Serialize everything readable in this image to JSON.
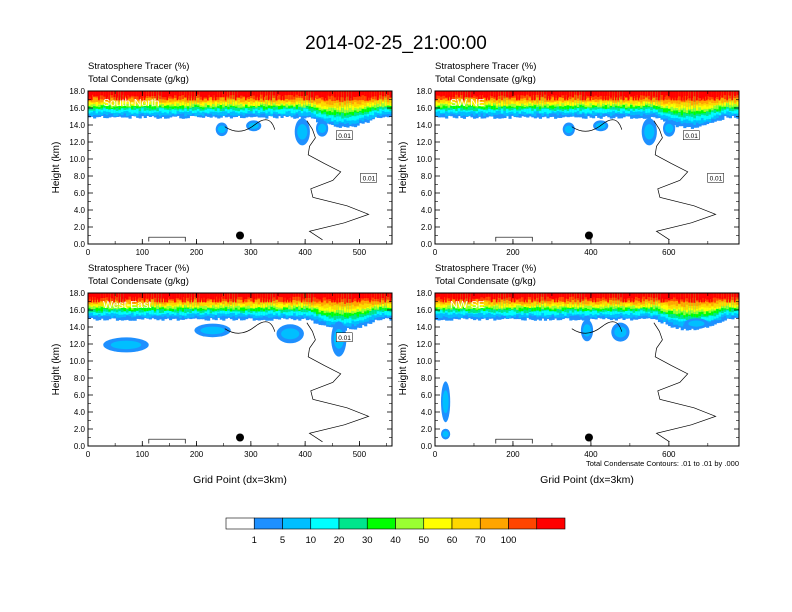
{
  "title": "2014-02-25_21:00:00",
  "colorbar": {
    "labels": [
      "1",
      "5",
      "10",
      "20",
      "30",
      "40",
      "50",
      "60",
      "70",
      "100"
    ],
    "colors": [
      "#ffffff",
      "#1e90ff",
      "#00bfff",
      "#00ffff",
      "#00e58c",
      "#00ff00",
      "#9aff32",
      "#ffff00",
      "#ffd700",
      "#ffa500",
      "#ff4500",
      "#ff0000"
    ]
  },
  "chart_data": [
    {
      "type": "heatmap",
      "label": "South-North",
      "title_left_1": "Stratosphere Tracer   (%)",
      "title_left_2": "Total Condensate   (g/kg)",
      "ylabel": "Height (km)",
      "xlabel": "",
      "xlim": [
        0,
        560
      ],
      "ylim": [
        0,
        18
      ],
      "xticks": [
        "0",
        "100",
        "200",
        "300",
        "400",
        "500"
      ],
      "xtick_values": [
        0,
        100,
        200,
        300,
        400,
        500
      ],
      "yticks": [
        "0.0",
        "2.0",
        "4.0",
        "6.0",
        "8.0",
        "10.0",
        "12.0",
        "14.0",
        "16.0",
        "18.0"
      ],
      "contour_labels": [
        "0.01",
        "0.01"
      ],
      "marker_x": 280,
      "marker_y": 1.0
    },
    {
      "type": "heatmap",
      "label": "SW-NE",
      "title_left_1": "Stratosphere Tracer   (%)",
      "title_left_2": "Total Condensate   (g/kg)",
      "ylabel": "Height (km)",
      "xlabel": "",
      "xlim": [
        0,
        780
      ],
      "ylim": [
        0,
        18
      ],
      "xticks": [
        "0",
        "200",
        "400",
        "600"
      ],
      "xtick_values": [
        0,
        200,
        400,
        600
      ],
      "yticks": [
        "0.0",
        "2.0",
        "4.0",
        "6.0",
        "8.0",
        "10.0",
        "12.0",
        "14.0",
        "16.0",
        "18.0"
      ],
      "contour_labels": [
        "0.01",
        "0.01"
      ],
      "marker_x": 395,
      "marker_y": 1.0
    },
    {
      "type": "heatmap",
      "label": "West-East",
      "title_left_1": "Stratosphere Tracer   (%)",
      "title_left_2": "Total Condensate   (g/kg)",
      "ylabel": "Height (km)",
      "xlabel": "Grid Point (dx=3km)",
      "xlim": [
        0,
        560
      ],
      "ylim": [
        0,
        18
      ],
      "xticks": [
        "0",
        "100",
        "200",
        "300",
        "400",
        "500"
      ],
      "xtick_values": [
        0,
        100,
        200,
        300,
        400,
        500
      ],
      "yticks": [
        "0.0",
        "2.0",
        "4.0",
        "6.0",
        "8.0",
        "10.0",
        "12.0",
        "14.0",
        "16.0",
        "18.0"
      ],
      "contour_labels": [
        "0.01"
      ],
      "marker_x": 280,
      "marker_y": 1.0
    },
    {
      "type": "heatmap",
      "label": "NW-SE",
      "title_left_1": "Stratosphere Tracer   (%)",
      "title_left_2": "Total Condensate   (g/kg)",
      "ylabel": "Height (km)",
      "xlabel": "Grid Point (dx=3km)",
      "xlim": [
        0,
        780
      ],
      "ylim": [
        0,
        18
      ],
      "xticks": [
        "0",
        "200",
        "400",
        "600"
      ],
      "xtick_values": [
        0,
        200,
        400,
        600
      ],
      "yticks": [
        "0.0",
        "2.0",
        "4.0",
        "6.0",
        "8.0",
        "10.0",
        "12.0",
        "14.0",
        "16.0",
        "18.0"
      ],
      "contour_labels": [],
      "marker_x": 395,
      "marker_y": 1.0,
      "footnote": "Total Condensate Contours: .01 to .01 by .000"
    }
  ]
}
